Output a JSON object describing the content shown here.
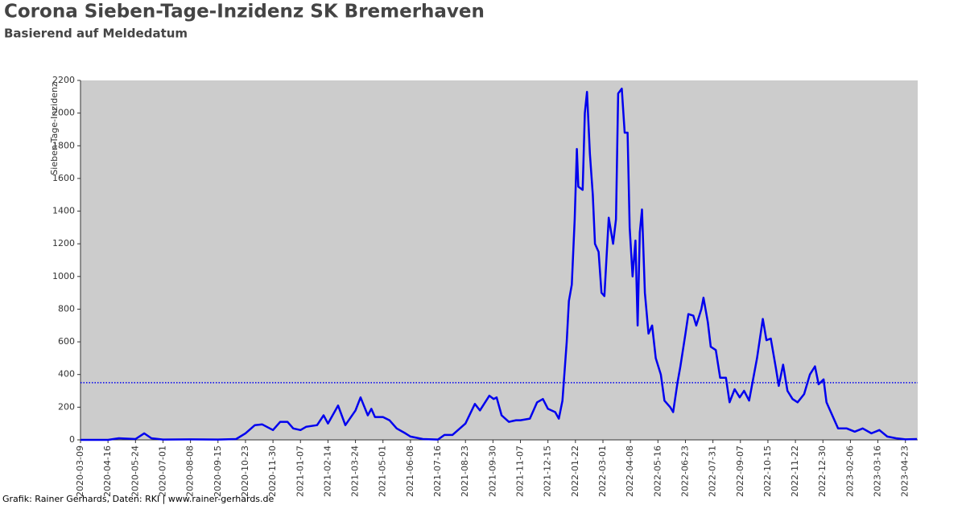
{
  "chart_data": {
    "type": "line",
    "title": "Corona Sieben-Tage-Inzidenz SK Bremerhaven",
    "subtitle": "Basierend auf Meldedatum",
    "y_label": "Sieben-Tage-Inzidenz",
    "footer": "Grafik: Rainer Gerhards, Daten: RKI | www.rainer-gerhards.de",
    "color": "#0000ee",
    "hline": 350,
    "x": [
      "2020-03-09",
      "2020-04-16",
      "2020-05-01",
      "2020-05-24",
      "2020-06-05",
      "2020-06-15",
      "2020-07-01",
      "2020-08-08",
      "2020-09-15",
      "2020-10-10",
      "2020-10-23",
      "2020-11-05",
      "2020-11-15",
      "2020-11-30",
      "2020-12-10",
      "2020-12-20",
      "2020-12-28",
      "2021-01-07",
      "2021-01-15",
      "2021-01-30",
      "2021-02-08",
      "2021-02-14",
      "2021-02-28",
      "2021-03-10",
      "2021-03-24",
      "2021-03-31",
      "2021-04-10",
      "2021-04-15",
      "2021-04-20",
      "2021-05-01",
      "2021-05-10",
      "2021-05-20",
      "2021-06-01",
      "2021-06-08",
      "2021-06-25",
      "2021-07-16",
      "2021-07-25",
      "2021-08-05",
      "2021-08-23",
      "2021-09-05",
      "2021-09-12",
      "2021-09-25",
      "2021-10-01",
      "2021-10-05",
      "2021-10-12",
      "2021-10-22",
      "2021-11-01",
      "2021-11-07",
      "2021-11-20",
      "2021-11-30",
      "2021-12-08",
      "2021-12-15",
      "2021-12-25",
      "2021-12-30",
      "2022-01-04",
      "2022-01-10",
      "2022-01-13",
      "2022-01-17",
      "2022-01-21",
      "2022-01-24",
      "2022-01-26",
      "2022-02-01",
      "2022-02-04",
      "2022-02-07",
      "2022-02-11",
      "2022-02-15",
      "2022-02-18",
      "2022-02-23",
      "2022-02-27",
      "2022-03-03",
      "2022-03-09",
      "2022-03-15",
      "2022-03-19",
      "2022-03-22",
      "2022-03-27",
      "2022-03-31",
      "2022-04-04",
      "2022-04-07",
      "2022-04-11",
      "2022-04-15",
      "2022-04-18",
      "2022-04-21",
      "2022-04-24",
      "2022-04-28",
      "2022-05-03",
      "2022-05-08",
      "2022-05-13",
      "2022-05-20",
      "2022-05-25",
      "2022-06-02",
      "2022-06-06",
      "2022-06-12",
      "2022-06-16",
      "2022-06-23",
      "2022-06-27",
      "2022-07-04",
      "2022-07-08",
      "2022-07-15",
      "2022-07-18",
      "2022-07-24",
      "2022-07-28",
      "2022-08-04",
      "2022-08-10",
      "2022-08-18",
      "2022-08-23",
      "2022-08-30",
      "2022-09-06",
      "2022-09-12",
      "2022-09-19",
      "2022-09-30",
      "2022-10-08",
      "2022-10-13",
      "2022-10-19",
      "2022-10-26",
      "2022-10-30",
      "2022-11-05",
      "2022-11-11",
      "2022-11-18",
      "2022-11-25",
      "2022-12-04",
      "2022-12-12",
      "2022-12-19",
      "2022-12-24",
      "2022-12-31",
      "2023-01-04",
      "2023-01-12",
      "2023-01-20",
      "2023-02-01",
      "2023-02-12",
      "2023-02-23",
      "2023-03-07",
      "2023-03-18",
      "2023-03-29",
      "2023-04-10",
      "2023-04-23",
      "2023-05-09"
    ],
    "values": [
      0,
      0,
      10,
      5,
      40,
      10,
      2,
      3,
      2,
      5,
      40,
      90,
      95,
      60,
      110,
      110,
      70,
      60,
      80,
      90,
      150,
      100,
      210,
      90,
      180,
      260,
      150,
      190,
      140,
      140,
      120,
      70,
      40,
      20,
      5,
      2,
      30,
      30,
      100,
      220,
      180,
      270,
      250,
      260,
      150,
      110,
      120,
      120,
      130,
      230,
      250,
      190,
      170,
      130,
      240,
      600,
      850,
      950,
      1350,
      1780,
      1550,
      1530,
      2000,
      2130,
      1750,
      1500,
      1200,
      1150,
      900,
      880,
      1360,
      1200,
      1350,
      2120,
      2150,
      1880,
      1880,
      1300,
      1000,
      1220,
      700,
      1270,
      1410,
      900,
      650,
      700,
      500,
      400,
      240,
      200,
      170,
      350,
      450,
      650,
      770,
      760,
      700,
      800,
      870,
      720,
      570,
      550,
      380,
      380,
      230,
      310,
      260,
      300,
      240,
      500,
      740,
      610,
      620,
      440,
      330,
      460,
      300,
      250,
      230,
      280,
      400,
      450,
      340,
      370,
      230,
      150,
      70,
      70,
      50,
      70,
      40,
      60,
      20,
      10,
      3,
      5
    ],
    "xlim": [
      "2020-03-09",
      "2023-05-10"
    ],
    "xticks": [
      "2020-03-09",
      "2020-04-16",
      "2020-05-24",
      "2020-07-01",
      "2020-08-08",
      "2020-09-15",
      "2020-10-23",
      "2020-11-30",
      "2021-01-07",
      "2021-02-14",
      "2021-03-24",
      "2021-05-01",
      "2021-06-08",
      "2021-07-16",
      "2021-08-23",
      "2021-09-30",
      "2021-11-07",
      "2021-12-15",
      "2022-01-22",
      "2022-03-01",
      "2022-04-08",
      "2022-05-16",
      "2022-06-23",
      "2022-07-31",
      "2022-09-07",
      "2022-10-15",
      "2022-11-22",
      "2022-12-30",
      "2023-02-06",
      "2023-03-16",
      "2023-04-23"
    ],
    "ylim": [
      0,
      2200
    ],
    "yticks": [
      0,
      200,
      400,
      600,
      800,
      1000,
      1200,
      1400,
      1600,
      1800,
      2000,
      2200
    ]
  }
}
